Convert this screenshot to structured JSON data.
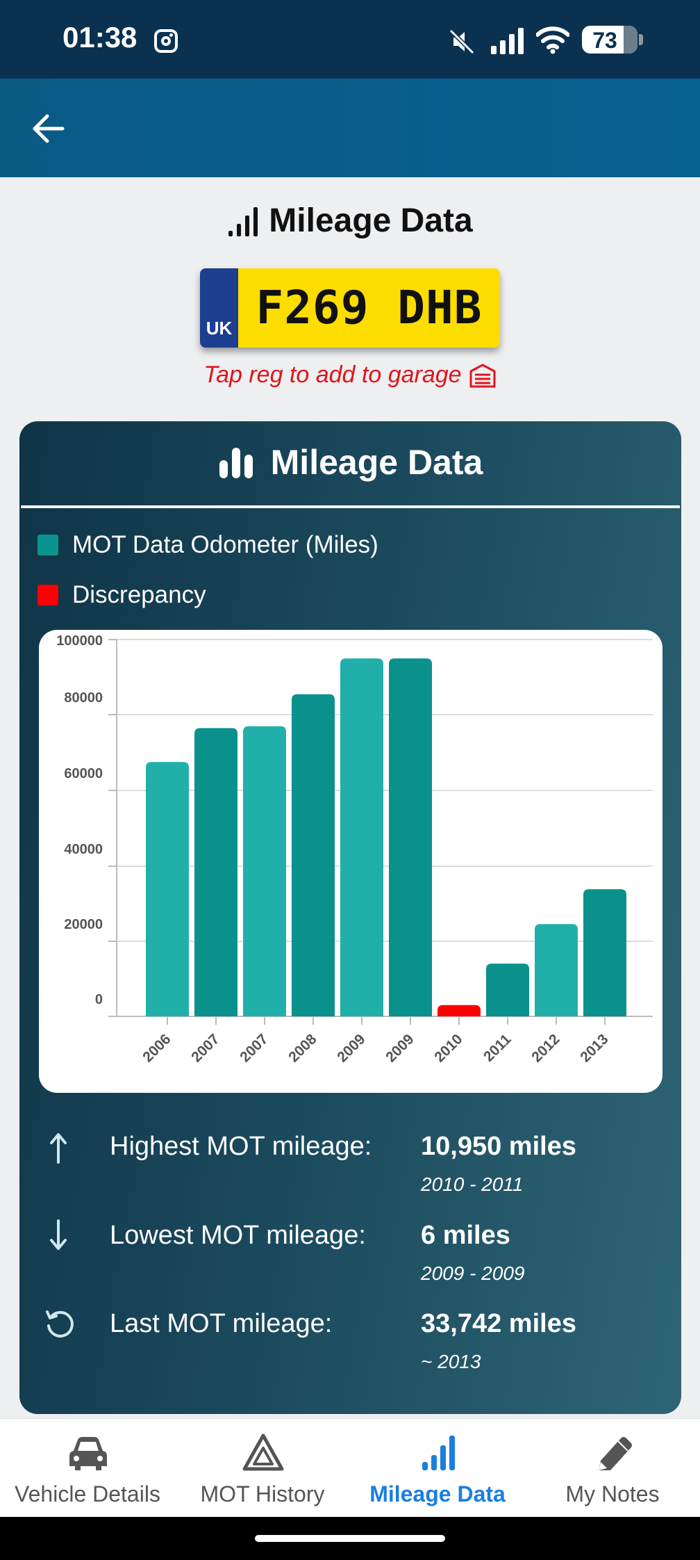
{
  "status_bar": {
    "time": "01:38",
    "battery": "73"
  },
  "page": {
    "title": "Mileage Data"
  },
  "plate": {
    "country": "UK",
    "registration": "F269 DHB"
  },
  "garage_hint": "Tap reg to add to garage",
  "card": {
    "title": "Mileage Data",
    "legend": [
      {
        "label": "MOT Data Odometer (Miles)",
        "color": "#0a9490"
      },
      {
        "label": "Discrepancy",
        "color": "#ff0000"
      }
    ]
  },
  "chart_data": {
    "type": "bar",
    "categories": [
      "2006",
      "2007",
      "2007",
      "2008",
      "2009",
      "2009",
      "2010",
      "2011",
      "2012",
      "2013"
    ],
    "values": [
      67500,
      76500,
      77000,
      85500,
      95000,
      95000,
      3000,
      14000,
      24500,
      33742
    ],
    "discrepancy": [
      false,
      false,
      false,
      false,
      false,
      false,
      true,
      false,
      false,
      false
    ],
    "bar_colors": [
      "#21b0a9",
      "#0a918c",
      "#21b0a9",
      "#0a918c",
      "#21b0a9",
      "#0a918c",
      "#ff0000",
      "#0a918c",
      "#21b0a9",
      "#0a918c"
    ],
    "yticks": [
      "100000",
      "80000",
      "60000",
      "40000",
      "20000",
      "0"
    ],
    "ylim": [
      0,
      100000
    ],
    "grid": true,
    "legend": "top-left"
  },
  "stats": [
    {
      "icon": "arrow-up-icon",
      "label": "Highest MOT mileage:",
      "value": "10,950 miles",
      "sub": "2010 - 2011"
    },
    {
      "icon": "arrow-down-icon",
      "label": "Lowest MOT mileage:",
      "value": "6 miles",
      "sub": "2009 - 2009"
    },
    {
      "icon": "history-icon",
      "label": "Last MOT mileage:",
      "value": "33,742 miles",
      "sub": "~ 2013"
    }
  ],
  "nav": [
    {
      "label": "Vehicle Details",
      "icon": "car-icon",
      "active": false
    },
    {
      "label": "MOT History",
      "icon": "warning-triangle-icon",
      "active": false
    },
    {
      "label": "Mileage Data",
      "icon": "signal-bars-icon",
      "active": true
    },
    {
      "label": "My Notes",
      "icon": "pencil-icon",
      "active": false
    }
  ],
  "colors": {
    "accent": "#1a7ee0",
    "discrepancy": "#e0141b",
    "plate": "#fddd00"
  }
}
